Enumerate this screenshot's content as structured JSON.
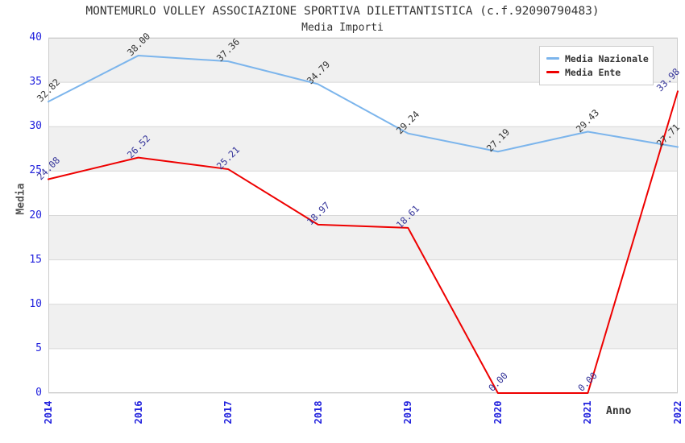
{
  "chart_data": {
    "type": "line",
    "title": "MONTEMURLO VOLLEY ASSOCIAZIONE SPORTIVA DILETTANTISTICA (c.f.92090790483)",
    "subtitle": "Media Importi",
    "xlabel": "Anno",
    "ylabel": "Media",
    "categories": [
      "2014",
      "2016",
      "2017",
      "2018",
      "2019",
      "2020",
      "2021",
      "2022"
    ],
    "ylim": [
      0,
      40
    ],
    "yticks": [
      0,
      5,
      10,
      15,
      20,
      25,
      30,
      35,
      40
    ],
    "grid": "horizontal-alternating-bands",
    "legend_position": "top-right",
    "series": [
      {
        "name": "Media Nazionale",
        "color": "#7cb5ec",
        "label_color": "#333333",
        "values": [
          32.82,
          38.0,
          37.36,
          34.79,
          29.24,
          27.19,
          29.43,
          27.71
        ]
      },
      {
        "name": "Media Ente",
        "color": "#ee0000",
        "label_color": "#333399",
        "values": [
          24.08,
          26.52,
          25.21,
          18.97,
          18.61,
          0.0,
          0.0,
          33.98
        ]
      }
    ],
    "label_decimals": 2,
    "colors": {
      "tick_label": "#2222dd",
      "band_fill": "#f0f0f0",
      "band_alt_fill": "#ffffff",
      "grid_line": "#d8d8d8",
      "plot_border": "#cccccc",
      "title": "#333333",
      "axis_title": "#555555"
    }
  }
}
